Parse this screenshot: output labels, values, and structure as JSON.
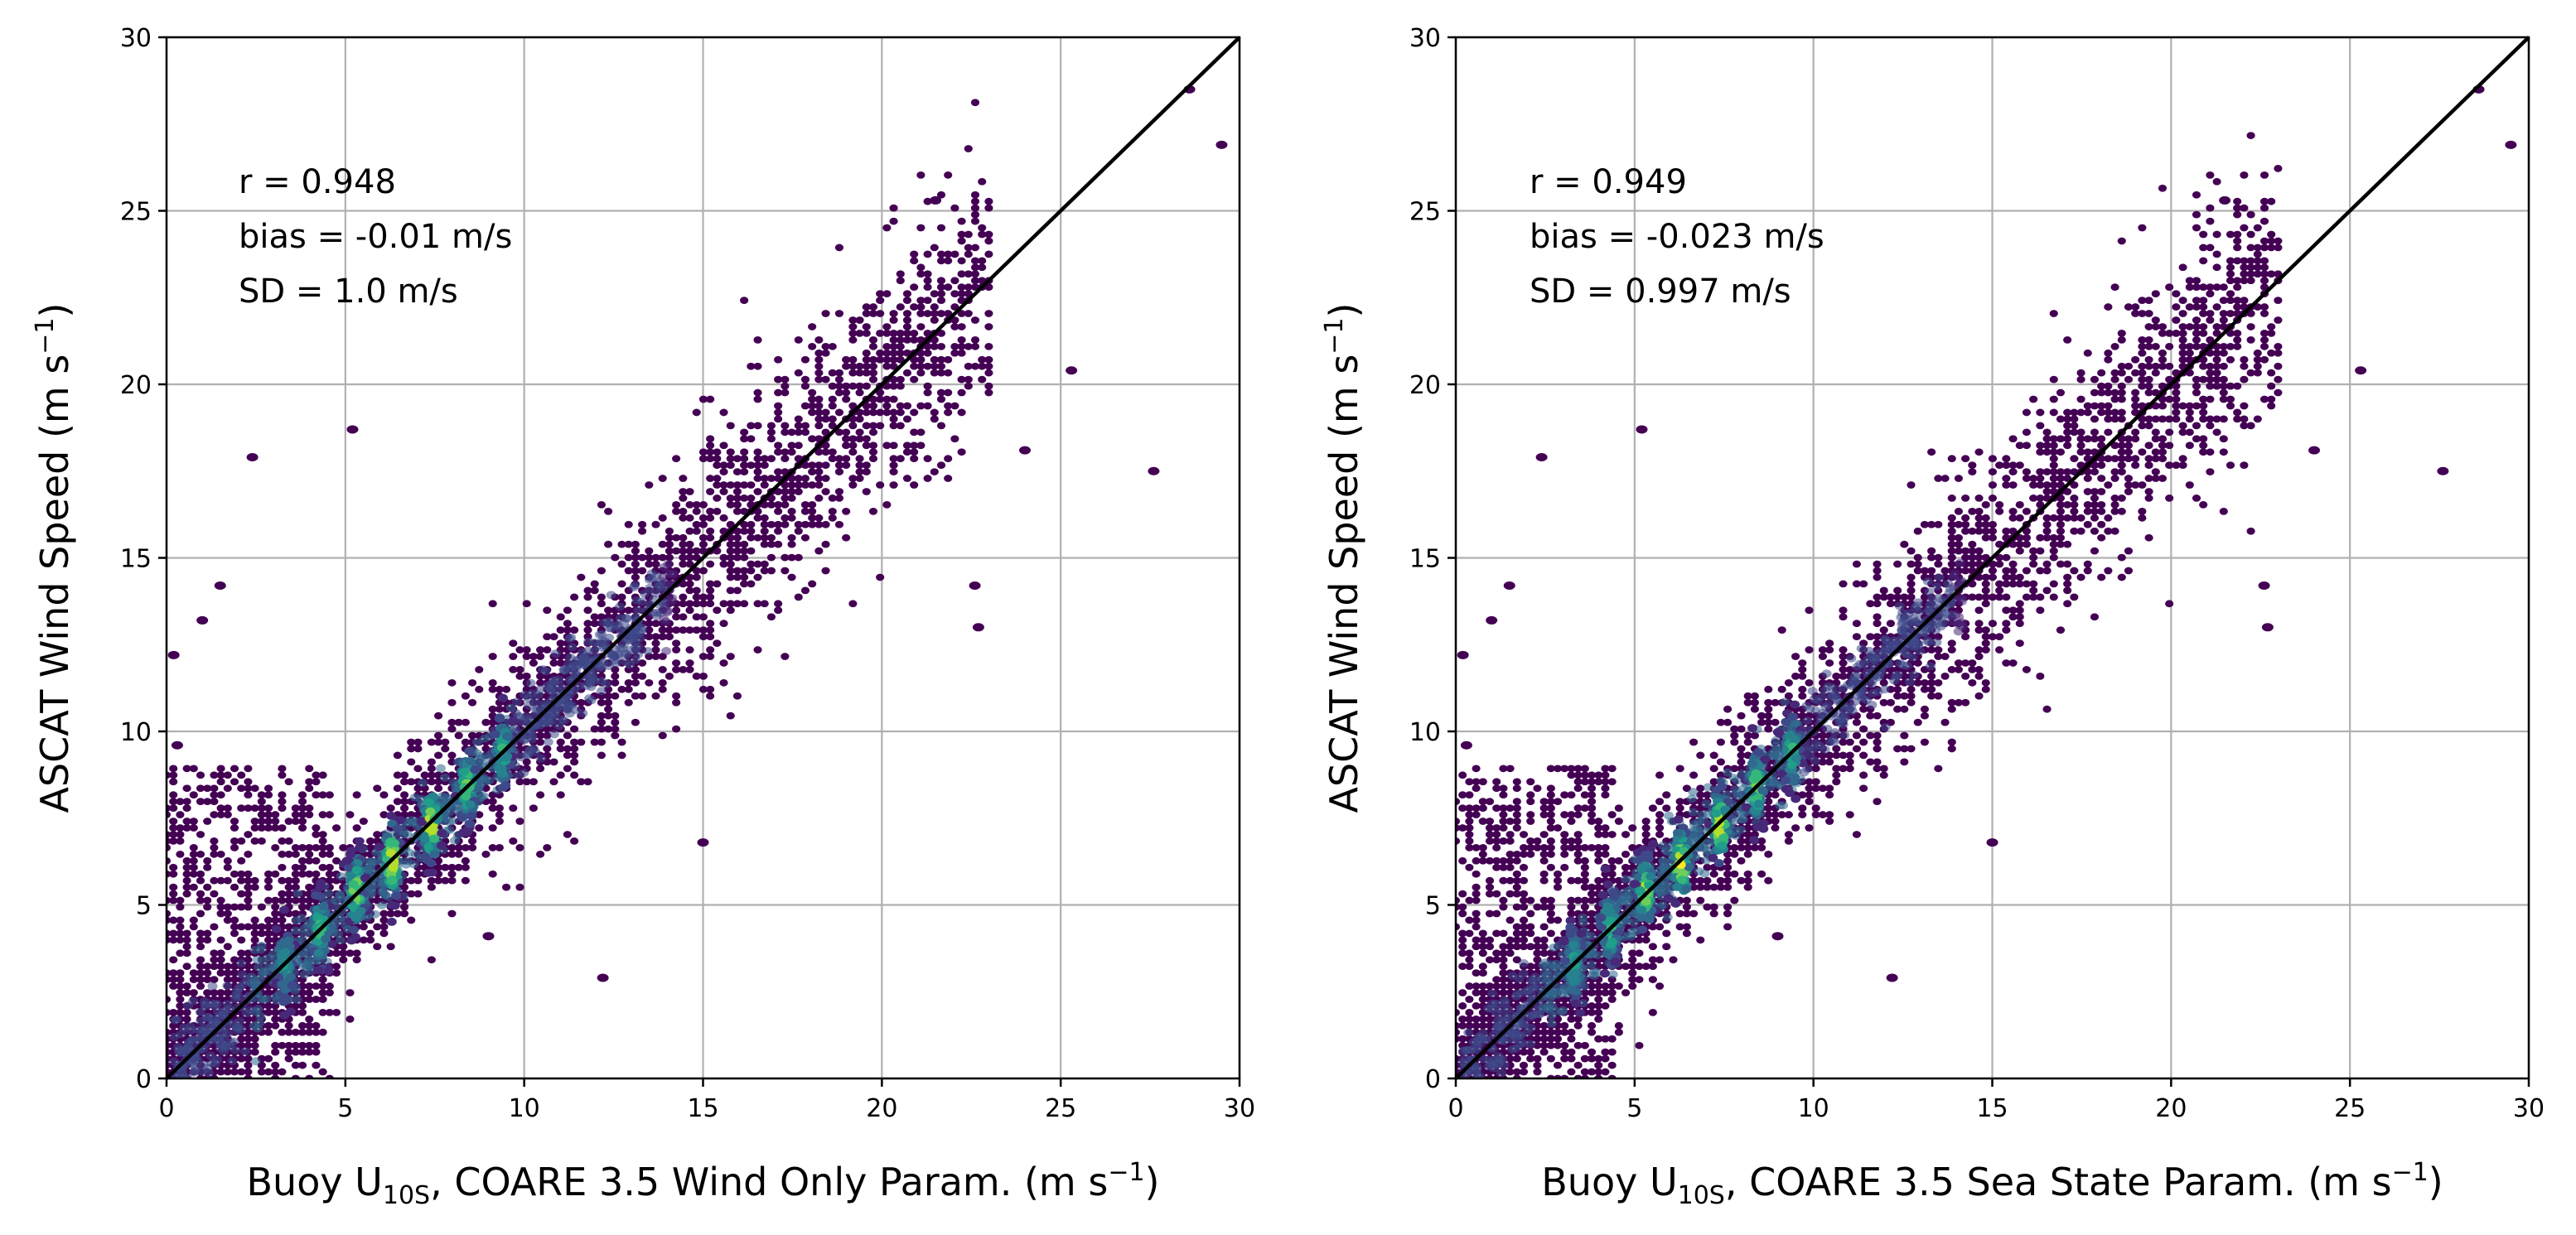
{
  "colors": {
    "background": "#ffffff",
    "cloud": "#440154",
    "colormap": [
      "#440154",
      "#482878",
      "#3e4989",
      "#31688e",
      "#26828e",
      "#1f9e89",
      "#35b779",
      "#6ece58",
      "#b5de2b",
      "#fde725"
    ],
    "one_to_one_line": "#000000",
    "grid": "#b0b0b0"
  },
  "chart_data": [
    {
      "type": "hexbin_scatter",
      "panel": "left",
      "xlabel_parts": [
        "Buoy U",
        "10S",
        ", COARE 3.5 Wind Only Param. (m s",
        "−1",
        ")"
      ],
      "ylabel_parts": [
        "ASCAT Wind Speed (m s",
        "−1",
        ")"
      ],
      "xlim": [
        0,
        30
      ],
      "ylim": [
        0,
        30
      ],
      "xticks": [
        0,
        5,
        10,
        15,
        20,
        25,
        30
      ],
      "yticks": [
        0,
        5,
        10,
        15,
        20,
        25,
        30
      ],
      "grid": true,
      "one_to_one_line": [
        [
          0,
          0
        ],
        [
          30,
          30
        ]
      ],
      "stats": [
        "r = 0.948",
        "bias = -0.01 m/s",
        "SD = 1.0 m/s"
      ],
      "r": 0.948,
      "bias_m_s": -0.01,
      "sd_m_s": 1.0,
      "density_peaks": [
        [
          3.3,
          3.3
        ],
        [
          4.3,
          4.3
        ],
        [
          5.3,
          5.4
        ],
        [
          6.3,
          6.3
        ],
        [
          7.4,
          7.3
        ],
        [
          8.4,
          8.4
        ],
        [
          9.4,
          9.4
        ]
      ],
      "outliers": [
        [
          2.4,
          17.9
        ],
        [
          5.2,
          18.7
        ],
        [
          21.5,
          25.3
        ],
        [
          28.6,
          28.5
        ],
        [
          29.5,
          26.9
        ],
        [
          27.6,
          17.5
        ],
        [
          25.3,
          20.4
        ],
        [
          24.0,
          18.1
        ],
        [
          22.6,
          14.2
        ],
        [
          22.7,
          13.0
        ],
        [
          15.0,
          6.8
        ],
        [
          12.2,
          2.9
        ],
        [
          9.0,
          4.1
        ],
        [
          0.2,
          12.2
        ],
        [
          0.3,
          9.6
        ],
        [
          1.0,
          13.2
        ],
        [
          1.5,
          14.2
        ]
      ]
    },
    {
      "type": "hexbin_scatter",
      "panel": "right",
      "xlabel_parts": [
        "Buoy U",
        "10S",
        ", COARE 3.5 Sea State Param. (m s",
        "−1",
        ")"
      ],
      "ylabel_parts": [
        "ASCAT Wind Speed (m s",
        "−1",
        ")"
      ],
      "xlim": [
        0,
        30
      ],
      "ylim": [
        0,
        30
      ],
      "xticks": [
        0,
        5,
        10,
        15,
        20,
        25,
        30
      ],
      "yticks": [
        0,
        5,
        10,
        15,
        20,
        25,
        30
      ],
      "grid": true,
      "one_to_one_line": [
        [
          0,
          0
        ],
        [
          30,
          30
        ]
      ],
      "stats": [
        "r = 0.949",
        "bias = -0.023 m/s",
        "SD = 0.997 m/s"
      ],
      "r": 0.949,
      "bias_m_s": -0.023,
      "sd_m_s": 0.997,
      "density_peaks": [
        [
          3.3,
          3.3
        ],
        [
          4.3,
          4.3
        ],
        [
          5.3,
          5.4
        ],
        [
          6.3,
          6.2
        ],
        [
          7.4,
          7.3
        ],
        [
          8.4,
          8.4
        ],
        [
          9.4,
          9.4
        ]
      ],
      "outliers": [
        [
          2.4,
          17.9
        ],
        [
          5.2,
          18.7
        ],
        [
          21.5,
          25.3
        ],
        [
          28.6,
          28.5
        ],
        [
          29.5,
          26.9
        ],
        [
          27.6,
          17.5
        ],
        [
          25.3,
          20.4
        ],
        [
          24.0,
          18.1
        ],
        [
          22.6,
          14.2
        ],
        [
          22.7,
          13.0
        ],
        [
          15.0,
          6.8
        ],
        [
          12.2,
          2.9
        ],
        [
          9.0,
          4.1
        ],
        [
          0.2,
          12.2
        ],
        [
          0.3,
          9.6
        ],
        [
          1.0,
          13.2
        ],
        [
          1.5,
          14.2
        ]
      ]
    }
  ]
}
